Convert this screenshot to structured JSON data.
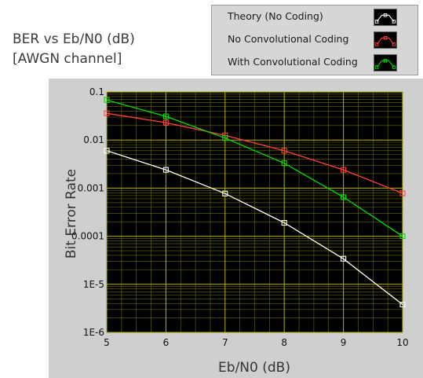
{
  "colors": {
    "plot_bg": "#000000",
    "grid": "#b5b200",
    "minor_grid": "#6e6b00",
    "theory": "#ffffff",
    "uncoded": "#ff4040",
    "coded": "#00e000"
  },
  "chart_data": {
    "type": "line",
    "title_lines": [
      "BER vs Eb/N0 (dB)",
      "[AWGN channel]"
    ],
    "xlabel": "Eb/N0 (dB)",
    "ylabel": "Bit Error Rate",
    "xlim": [
      5,
      10
    ],
    "ylim": [
      1e-06,
      0.1
    ],
    "yscale": "log",
    "grid": true,
    "legend_position": "top-right",
    "x_ticks": [
      "5",
      "6",
      "7",
      "8",
      "9",
      "10"
    ],
    "y_ticks": [
      {
        "value": 0.1,
        "label": "0.1"
      },
      {
        "value": 0.01,
        "label": "0.01"
      },
      {
        "value": 0.001,
        "label": "0.001"
      },
      {
        "value": 0.0001,
        "label": "0.0001"
      },
      {
        "value": 1e-05,
        "label": "1E-5"
      },
      {
        "value": 1e-06,
        "label": "1E-6"
      }
    ],
    "x": [
      5,
      6,
      7,
      8,
      9,
      10
    ],
    "series": [
      {
        "name": "Theory (No Coding)",
        "color_key": "theory",
        "values": [
          0.006,
          0.0024,
          0.00077,
          0.00019,
          3.4e-05,
          3.8e-06
        ]
      },
      {
        "name": "No Convolutional Coding",
        "color_key": "uncoded",
        "values": [
          0.036,
          0.023,
          0.0125,
          0.006,
          0.0024,
          0.00078
        ]
      },
      {
        "name": "With Convolutional Coding",
        "color_key": "coded",
        "values": [
          0.068,
          0.031,
          0.011,
          0.0033,
          0.00065,
          0.0001
        ]
      }
    ]
  }
}
